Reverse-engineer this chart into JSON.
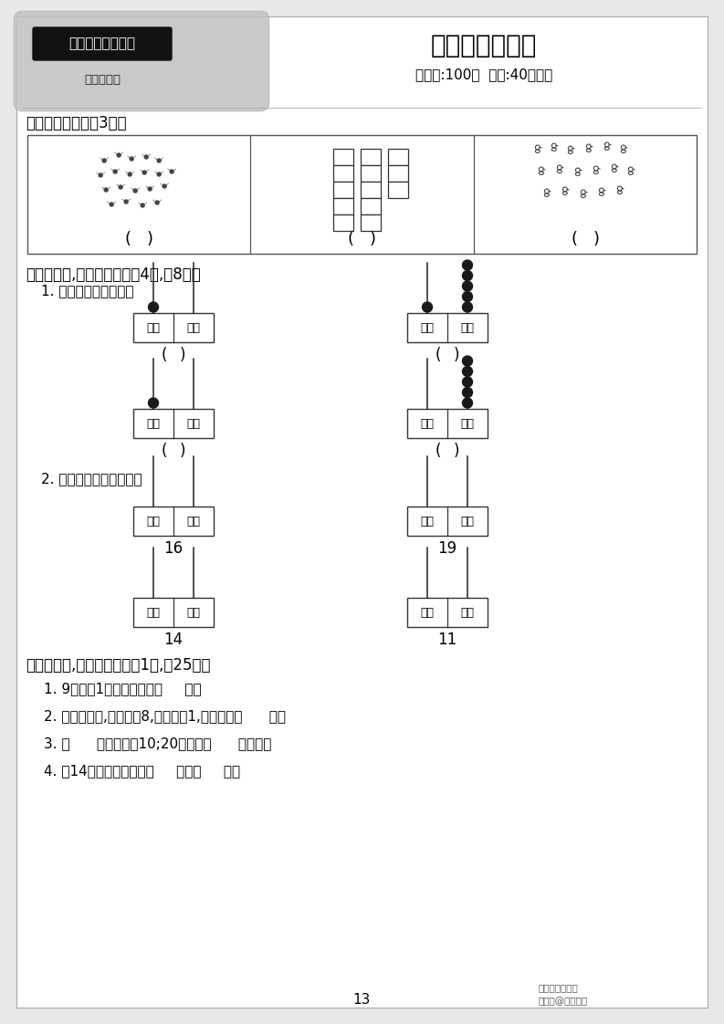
{
  "title": "第六单元测评卷",
  "subtitle": "（满分:100分  时间:40分钟）",
  "header_label": "一年级数学（上）",
  "header_sub": "（人教版）",
  "section1_title": "一、看图写数。（3分）",
  "section2_title": "二、画一画,填一填。（每题4分,兲8分）",
  "section2_sub1": "1. 写出下图表示的数。",
  "section2_sub2": "2. 根据给出的数画珠子。",
  "section3_title": "三、想一想,填一填。（每硨1分,刑25分）",
  "section3_items": [
    "1. 9个一和1个十合起来是（     ）。",
    "2. 一个两位数,个位上是8,十位上是1,这个数是（      ）。",
    "3. （      ）个一组成10;20里面有（      ）个十。",
    "4. 和14相邻的两个数是（     ）和（     ）。"
  ],
  "ten_label": "十位",
  "one_label": "个位",
  "numbers_row1": [
    "16",
    "19"
  ],
  "numbers_row2": [
    "14",
    "11"
  ],
  "page_number": "13",
  "footer_text1": "中小学满分学苑",
  "footer_text2": "搜狐号@积精满斗",
  "bg_color": "#e8e8e8",
  "paper_color": "#ffffff",
  "dark_color": "#000000",
  "gray_color": "#888888",
  "header_bg": "#333333",
  "cloud_color": "#c8c8c8"
}
